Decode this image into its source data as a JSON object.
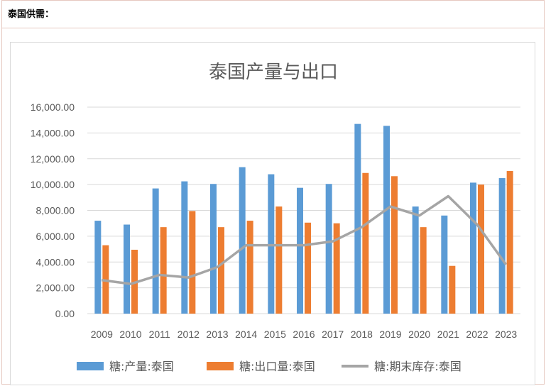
{
  "header": {
    "title": "泰国供需："
  },
  "chart_data": {
    "type": "bar",
    "title": "泰国产量与出口",
    "categories": [
      "2009",
      "2010",
      "2011",
      "2012",
      "2013",
      "2014",
      "2015",
      "2016",
      "2017",
      "2018",
      "2019",
      "2020",
      "2021",
      "2022",
      "2023"
    ],
    "series": [
      {
        "name": "糖:产量:泰国",
        "type": "bar",
        "color": "#5b9bd5",
        "values": [
          7200,
          6900,
          9700,
          10250,
          10050,
          11350,
          10800,
          9750,
          10050,
          14700,
          14550,
          8300,
          7600,
          10150,
          10500
        ]
      },
      {
        "name": "糖:出口量:泰国",
        "type": "bar",
        "color": "#ed7d31",
        "values": [
          5300,
          4950,
          6700,
          7950,
          6700,
          7200,
          8300,
          7050,
          7000,
          10900,
          10650,
          6700,
          3700,
          10000,
          11050
        ]
      },
      {
        "name": "糖:期末库存:泰国",
        "type": "line",
        "color": "#a5a5a5",
        "values": [
          2600,
          2300,
          3000,
          2800,
          3600,
          5300,
          5300,
          5300,
          5600,
          6700,
          8300,
          7600,
          9100,
          6900,
          3800
        ]
      }
    ],
    "ylim": [
      0,
      16000
    ],
    "yticks": [
      "0.00",
      "2,000.00",
      "4,000.00",
      "6,000.00",
      "8,000.00",
      "10,000.00",
      "12,000.00",
      "14,000.00",
      "16,000.00"
    ],
    "grid": true,
    "legend_position": "bottom"
  }
}
